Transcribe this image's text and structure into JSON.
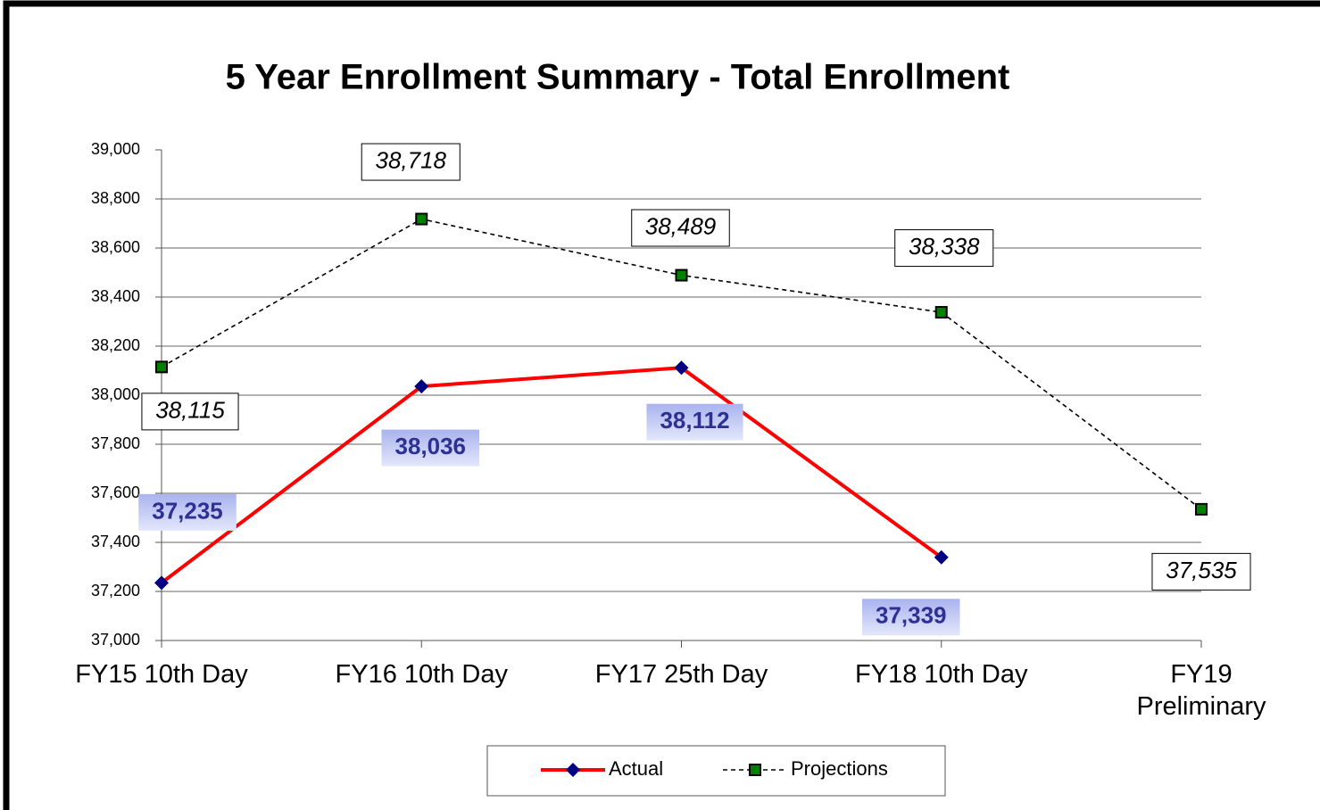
{
  "chart_data": {
    "type": "line",
    "title": "5 Year Enrollment Summary - Total Enrollment",
    "categories": [
      "FY15 10th Day",
      "FY16 10th Day",
      "FY17 25th Day",
      "FY18 10th Day",
      "FY19\nPreliminary"
    ],
    "series": [
      {
        "name": "Actual",
        "color": "#ff0000",
        "marker_color": "#000080",
        "values": [
          37235,
          38036,
          38112,
          37339,
          null
        ],
        "value_labels": [
          "37,235",
          "38,036",
          "38,112",
          "37,339",
          null
        ]
      },
      {
        "name": "Projections",
        "color": "#000000",
        "marker_color": "#008000",
        "values": [
          38115,
          38718,
          38489,
          38338,
          37535
        ],
        "value_labels": [
          "38,115",
          "38,718",
          "38,489",
          "38,338",
          "37,535"
        ]
      }
    ],
    "ylim": [
      37000,
      39000
    ],
    "yticks": [
      {
        "value": 37000,
        "label": "37,000"
      },
      {
        "value": 37200,
        "label": "37,200"
      },
      {
        "value": 37400,
        "label": "37,400"
      },
      {
        "value": 37600,
        "label": "37,600"
      },
      {
        "value": 37800,
        "label": "37,800"
      },
      {
        "value": 38000,
        "label": "38,000"
      },
      {
        "value": 38200,
        "label": "38,200"
      },
      {
        "value": 38400,
        "label": "38,400"
      },
      {
        "value": 38600,
        "label": "38,600"
      },
      {
        "value": 38800,
        "label": "38,800"
      },
      {
        "value": 39000,
        "label": "39,000"
      }
    ],
    "grid": true,
    "legend": "bottom"
  }
}
